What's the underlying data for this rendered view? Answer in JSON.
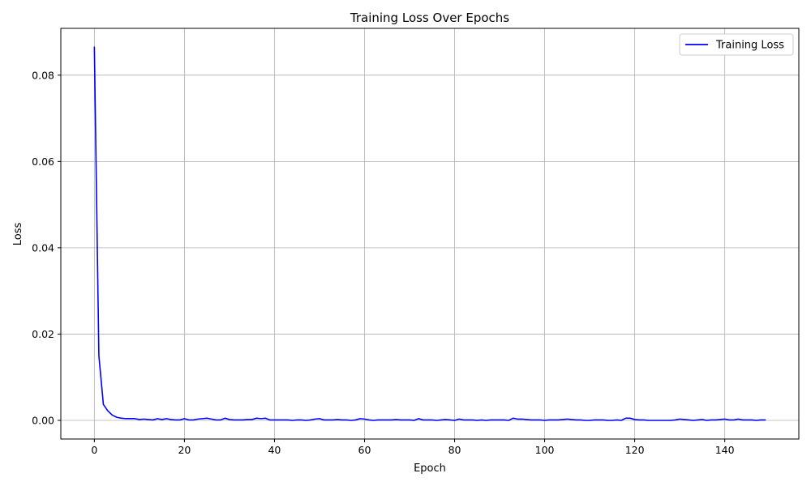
{
  "chart_data": {
    "type": "line",
    "title": "Training Loss Over Epochs",
    "xlabel": "Epoch",
    "ylabel": "Loss",
    "xlim": [
      -7.45,
      156.45
    ],
    "ylim": [
      -0.00432,
      0.09085
    ],
    "xticks": [
      0,
      20,
      40,
      60,
      80,
      100,
      120,
      140
    ],
    "xtick_labels": [
      "0",
      "20",
      "40",
      "60",
      "80",
      "100",
      "120",
      "140"
    ],
    "yticks": [
      0.0,
      0.02,
      0.04,
      0.06,
      0.08
    ],
    "ytick_labels": [
      "0.00",
      "0.02",
      "0.04",
      "0.06",
      "0.08"
    ],
    "grid": true,
    "legend_position": "top-right",
    "series": [
      {
        "name": "Training Loss",
        "color": "#0000ff",
        "x": [
          0,
          1,
          2,
          3,
          4,
          5,
          6,
          7,
          8,
          9,
          10,
          11,
          12,
          13,
          14,
          15,
          16,
          17,
          18,
          19,
          20,
          21,
          22,
          23,
          24,
          25,
          26,
          27,
          28,
          29,
          30,
          31,
          32,
          33,
          34,
          35,
          36,
          37,
          38,
          39,
          40,
          41,
          42,
          43,
          44,
          45,
          46,
          47,
          48,
          49,
          50,
          51,
          52,
          53,
          54,
          55,
          56,
          57,
          58,
          59,
          60,
          61,
          62,
          63,
          64,
          65,
          66,
          67,
          68,
          69,
          70,
          71,
          72,
          73,
          74,
          75,
          76,
          77,
          78,
          79,
          80,
          81,
          82,
          83,
          84,
          85,
          86,
          87,
          88,
          89,
          90,
          91,
          92,
          93,
          94,
          95,
          96,
          97,
          98,
          99,
          100,
          101,
          102,
          103,
          104,
          105,
          106,
          107,
          108,
          109,
          110,
          111,
          112,
          113,
          114,
          115,
          116,
          117,
          118,
          119,
          120,
          121,
          122,
          123,
          124,
          125,
          126,
          127,
          128,
          129,
          130,
          131,
          132,
          133,
          134,
          135,
          136,
          137,
          138,
          139,
          140,
          141,
          142,
          143,
          144,
          145,
          146,
          147,
          148,
          149
        ],
        "values": [
          0.0865,
          0.015,
          0.0037,
          0.0022,
          0.0012,
          0.0007,
          0.0005,
          0.0004,
          0.0004,
          0.0004,
          0.0002,
          0.0003,
          0.0002,
          0.0001,
          0.0004,
          0.0002,
          0.0004,
          0.0002,
          0.0001,
          0.0001,
          0.0004,
          0.0001,
          0.0001,
          0.0003,
          0.0004,
          0.0005,
          0.0003,
          0.0001,
          0.0001,
          0.0005,
          0.0002,
          0.0001,
          0.0001,
          0.0001,
          0.0002,
          0.0002,
          0.0005,
          0.0004,
          0.0005,
          0.0001,
          0.0001,
          0.0001,
          0.0001,
          0.0001,
          0.0,
          0.0001,
          0.0001,
          0.0,
          0.0001,
          0.0003,
          0.0004,
          0.0001,
          0.0001,
          0.0001,
          0.0002,
          0.0001,
          0.0001,
          0.0,
          0.0001,
          0.0004,
          0.0003,
          0.0001,
          0.0,
          0.0001,
          0.0001,
          0.0001,
          0.0001,
          0.0002,
          0.0001,
          0.0001,
          0.0001,
          0.0,
          0.0004,
          0.0001,
          0.0001,
          0.0001,
          0.0,
          0.0001,
          0.0002,
          0.0001,
          0.0,
          0.0003,
          0.0001,
          0.0001,
          0.0001,
          0.0,
          0.0001,
          0.0,
          0.0001,
          0.0001,
          0.0001,
          0.0001,
          0.0,
          0.0005,
          0.0003,
          0.0003,
          0.0002,
          0.0001,
          0.0001,
          0.0001,
          0.0,
          0.0001,
          0.0001,
          0.0001,
          0.0002,
          0.0003,
          0.0002,
          0.0001,
          0.0001,
          0.0,
          0.0,
          0.0001,
          0.0001,
          0.0001,
          0.0,
          0.0,
          0.0001,
          0.0,
          0.0005,
          0.0005,
          0.0002,
          0.0001,
          0.0001,
          0.0,
          0.0,
          0.0,
          0.0,
          0.0,
          0.0,
          0.0001,
          0.0003,
          0.0002,
          0.0001,
          0.0,
          0.0001,
          0.0002,
          0.0,
          0.0001,
          0.0001,
          0.0002,
          0.0003,
          0.0001,
          0.0001,
          0.0003,
          0.0001,
          0.0001,
          0.0001,
          0.0,
          0.0001,
          0.0001
        ]
      }
    ]
  }
}
